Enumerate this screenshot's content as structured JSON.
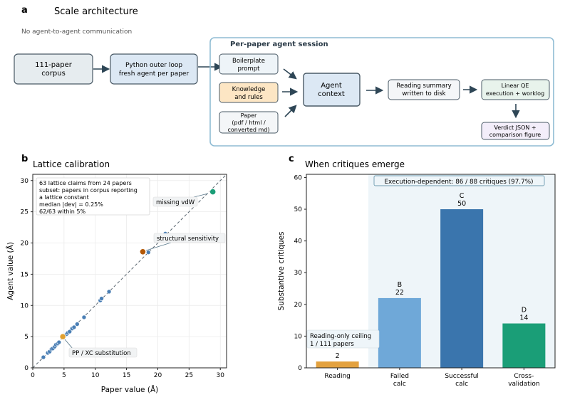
{
  "panel_a": {
    "letter": "a",
    "title": "Scale architecture",
    "subtitle": "No agent-to-agent communication",
    "corpus": [
      "111-paper",
      "corpus"
    ],
    "outer_loop": [
      "Python outer loop",
      "fresh agent per paper"
    ],
    "session_title": "Per-paper agent session",
    "boilerplate": [
      "Boilerplate",
      "prompt"
    ],
    "knowledge": [
      "Knowledge",
      "and rules"
    ],
    "paper_input": [
      "Paper",
      "(pdf / html /",
      "converted md)"
    ],
    "agent_context": [
      "Agent",
      "context"
    ],
    "reading_summary": [
      "Reading summary",
      "written to disk"
    ],
    "linear_qe": [
      "Linear QE",
      "execution + worklog"
    ],
    "verdict": [
      "Verdict JSON +",
      "comparison figure"
    ]
  },
  "panel_b": {
    "letter": "b",
    "title": "Lattice calibration",
    "stats": [
      "63 lattice claims from 24 papers",
      "subset: papers in corpus reporting",
      "a lattice constant",
      "median |dev| = 0.25%",
      "62/63 within 5%"
    ],
    "annotations": [
      "missing vdW",
      "structural sensitivity",
      "PP / XC substitution"
    ]
  },
  "panel_c": {
    "letter": "c",
    "title": "When critiques emerge",
    "banner": "Execution-dependent: 86 / 88 critiques (97.7%)",
    "ceiling": [
      "Reading-only ceiling",
      "1 / 111 papers"
    ]
  },
  "chart_data": [
    {
      "type": "scatter",
      "title": "Lattice calibration",
      "xlabel": "Paper value (Å)",
      "ylabel": "Agent value (Å)",
      "xlim": [
        0,
        31
      ],
      "ylim": [
        0,
        31
      ],
      "xticks": [
        0,
        5,
        10,
        15,
        20,
        25,
        30
      ],
      "yticks": [
        0,
        5,
        10,
        15,
        20,
        25,
        30
      ],
      "grid": true,
      "reference_line": "y = x",
      "points": [
        {
          "x": 1.7,
          "y": 1.7
        },
        {
          "x": 2.4,
          "y": 2.4
        },
        {
          "x": 2.7,
          "y": 2.6
        },
        {
          "x": 3.0,
          "y": 3.0
        },
        {
          "x": 3.2,
          "y": 3.1
        },
        {
          "x": 3.5,
          "y": 3.4
        },
        {
          "x": 3.7,
          "y": 3.7
        },
        {
          "x": 4.0,
          "y": 3.9
        },
        {
          "x": 4.2,
          "y": 4.1
        },
        {
          "x": 5.4,
          "y": 5.4
        },
        {
          "x": 5.6,
          "y": 5.6
        },
        {
          "x": 5.9,
          "y": 5.8
        },
        {
          "x": 6.3,
          "y": 6.3
        },
        {
          "x": 6.6,
          "y": 6.5
        },
        {
          "x": 7.1,
          "y": 7.0
        },
        {
          "x": 8.2,
          "y": 8.1
        },
        {
          "x": 10.8,
          "y": 10.8
        },
        {
          "x": 11.0,
          "y": 11.1
        },
        {
          "x": 12.2,
          "y": 12.2
        },
        {
          "x": 18.5,
          "y": 18.5
        },
        {
          "x": 21.2,
          "y": 21.5
        }
      ],
      "highlighted": [
        {
          "x": 28.8,
          "y": 28.2,
          "label": "missing vdW",
          "color": "#1b9e77"
        },
        {
          "x": 17.6,
          "y": 18.6,
          "label": "structural sensitivity",
          "color": "#b35806"
        },
        {
          "x": 4.8,
          "y": 5.0,
          "label": "PP / XC substitution",
          "color": "#e0a030"
        }
      ],
      "point_color": "#4a7fb5"
    },
    {
      "type": "bar",
      "title": "When critiques emerge",
      "ylabel": "Substantive critiques",
      "ylim": [
        0,
        61
      ],
      "yticks": [
        0,
        10,
        20,
        30,
        40,
        50,
        60
      ],
      "categories": [
        "Reading",
        "Failed calc",
        "Successful calc",
        "Cross-validation"
      ],
      "category_lines": [
        [
          "Reading"
        ],
        [
          "Failed",
          "calc"
        ],
        [
          "Successful",
          "calc"
        ],
        [
          "Cross-",
          "validation"
        ]
      ],
      "values": [
        2,
        22,
        50,
        14
      ],
      "bar_letters": [
        "",
        "B",
        "C",
        "D"
      ],
      "colors": [
        "#e3a13e",
        "#6fa8d8",
        "#3a75ad",
        "#1a9e77"
      ],
      "shaded_region": "execution-dependent (Failed calc through Cross-validation)"
    }
  ],
  "colors": {
    "arrow": "#2e4656",
    "box_border": "#4a5a66",
    "session_border": "#8fbcd4",
    "knowledge_fill": "#fde6c4",
    "agent_fill": "#dce8f4",
    "verdict_fill": "#f3eefa",
    "linear_fill": "#e8f3ec"
  }
}
